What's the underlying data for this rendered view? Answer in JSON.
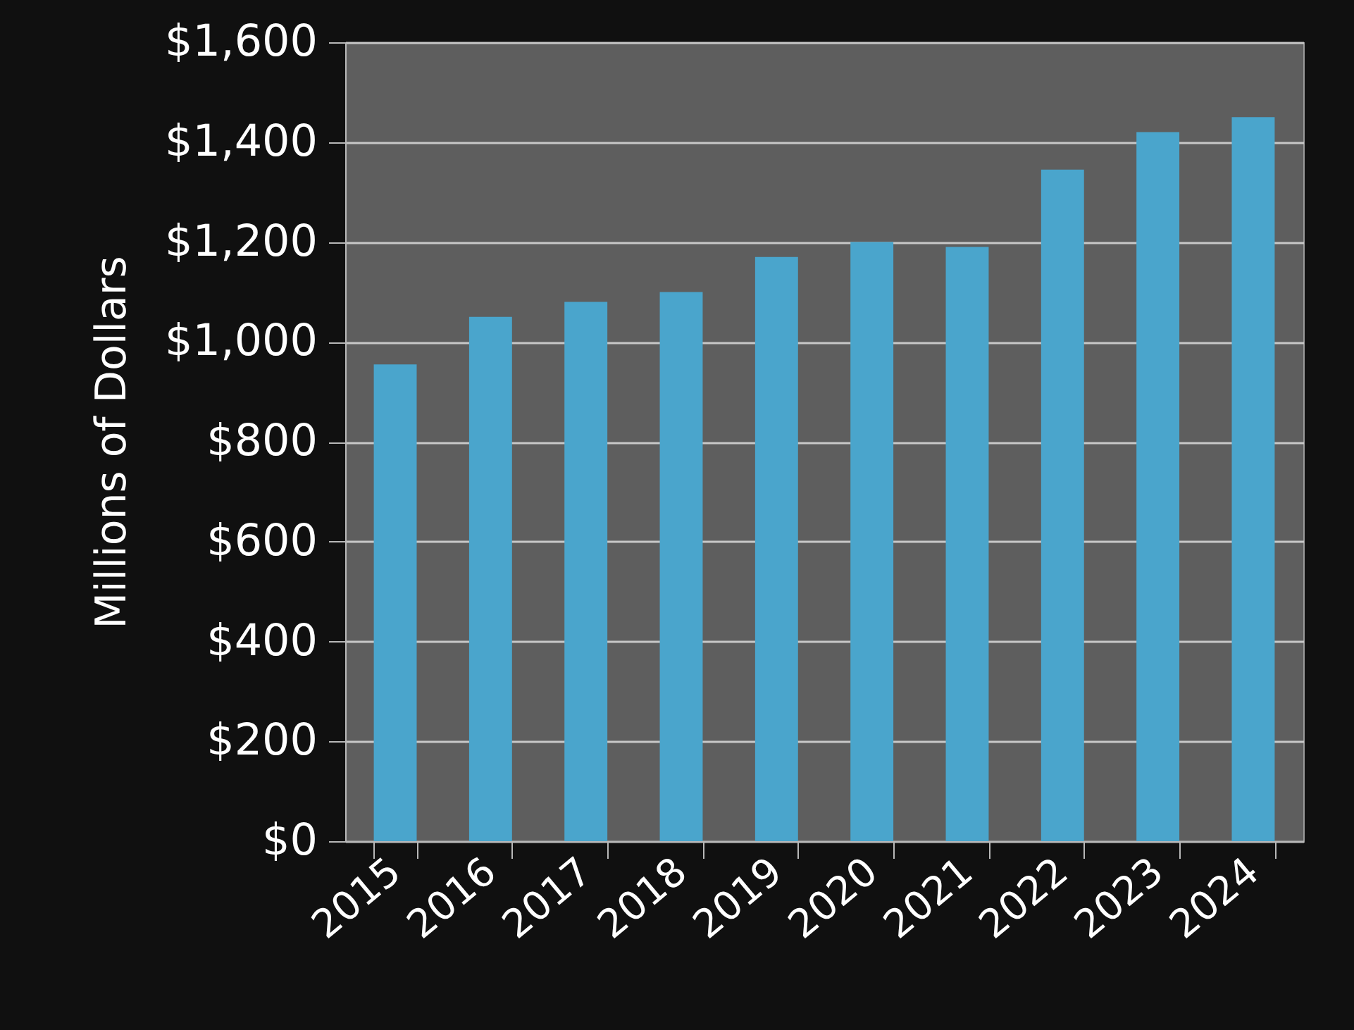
{
  "chart_data": {
    "type": "bar",
    "ylabel": "Millions of Dollars",
    "categories": [
      "2015",
      "2016",
      "2017",
      "2018",
      "2019",
      "2020",
      "2021",
      "2022",
      "2023",
      "2024"
    ],
    "values": [
      955,
      1050,
      1080,
      1100,
      1170,
      1200,
      1190,
      1345,
      1420,
      1450
    ],
    "color": "#4aa5cc",
    "ylim": [
      0,
      1600
    ],
    "yticks": [
      {
        "value": 0,
        "label": "$0"
      },
      {
        "value": 200,
        "label": "$200"
      },
      {
        "value": 400,
        "label": "$400"
      },
      {
        "value": 600,
        "label": "$600"
      },
      {
        "value": 800,
        "label": "$800"
      },
      {
        "value": 1000,
        "label": "$1,000"
      },
      {
        "value": 1200,
        "label": "$1,200"
      },
      {
        "value": 1400,
        "label": "$1,400"
      },
      {
        "value": 1600,
        "label": "$1,600"
      }
    ],
    "grid": "y"
  }
}
